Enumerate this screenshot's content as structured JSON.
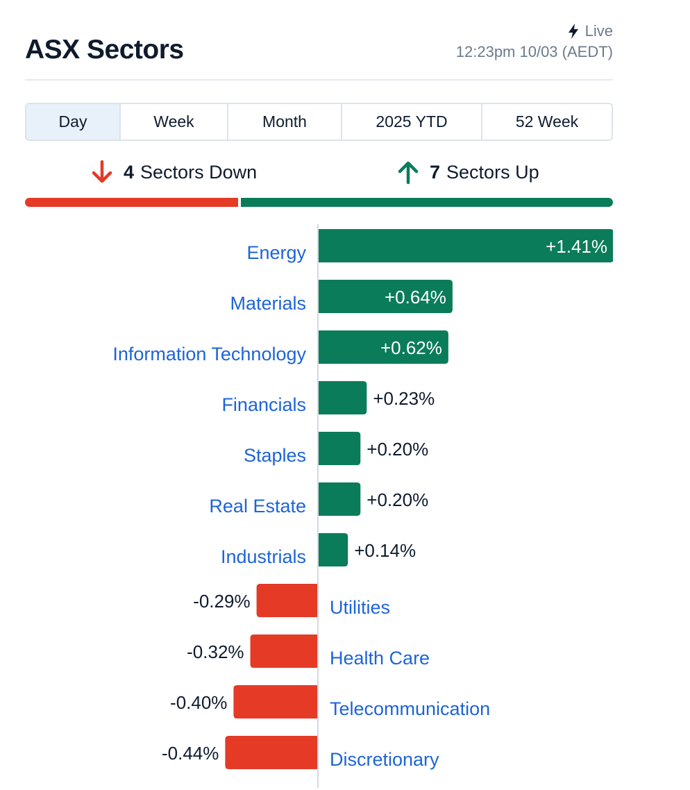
{
  "header": {
    "title": "ASX Sectors",
    "live_label": "Live",
    "timestamp": "12:23pm 10/03 (AEDT)"
  },
  "tabs": [
    {
      "label": "Day",
      "active": true
    },
    {
      "label": "Week",
      "active": false
    },
    {
      "label": "Month",
      "active": false
    },
    {
      "label": "2025 YTD",
      "active": false
    },
    {
      "label": "52 Week",
      "active": false
    }
  ],
  "summary": {
    "down_count": "4",
    "down_label": "Sectors Down",
    "up_count": "7",
    "up_label": "Sectors Up"
  },
  "colors": {
    "positive": "#0b7c5a",
    "negative": "#e43a26",
    "label": "#1d64d8",
    "value_text": "#0f1b2d"
  },
  "chart_data": {
    "type": "bar",
    "orientation": "horizontal",
    "categories": [
      "Energy",
      "Materials",
      "Information Technology",
      "Financials",
      "Staples",
      "Real Estate",
      "Industrials",
      "Utilities",
      "Health Care",
      "Telecommunication",
      "Discretionary"
    ],
    "values": [
      1.41,
      0.64,
      0.62,
      0.23,
      0.2,
      0.2,
      0.14,
      -0.29,
      -0.32,
      -0.4,
      -0.44
    ],
    "value_labels": [
      "+1.41%",
      "+0.64%",
      "+0.62%",
      "+0.23%",
      "+0.20%",
      "+0.20%",
      "+0.14%",
      "-0.29%",
      "-0.32%",
      "-0.40%",
      "-0.44%"
    ],
    "unit": "%",
    "grid": false,
    "legend": "none"
  }
}
